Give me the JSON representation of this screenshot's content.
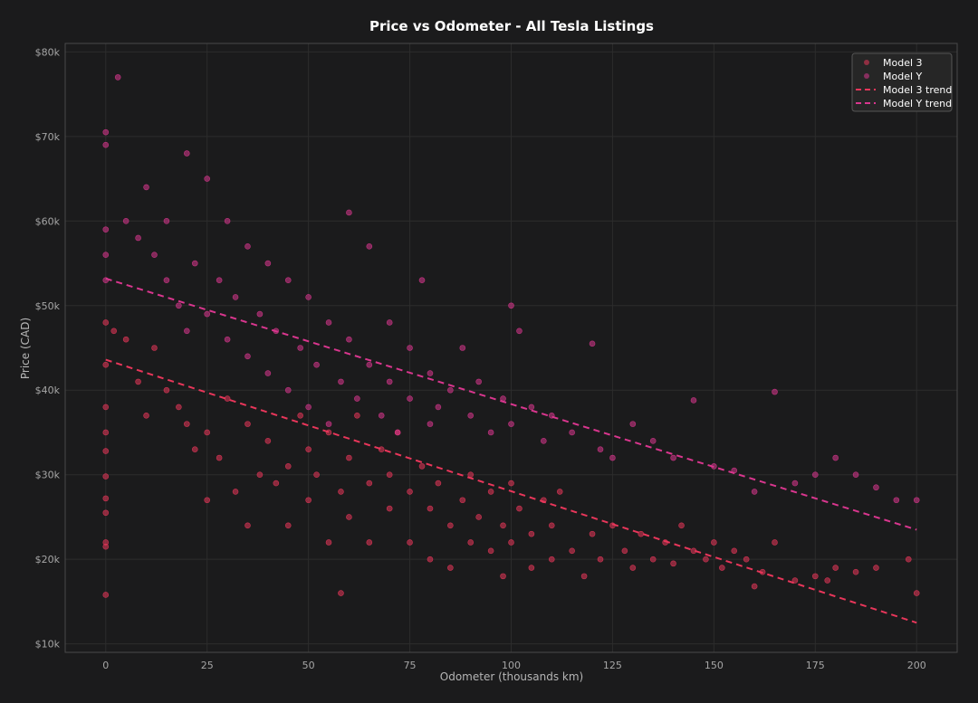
{
  "chart_data": {
    "type": "scatter",
    "title": "Price vs Odometer - All Tesla Listings",
    "xlabel": "Odometer (thousands km)",
    "ylabel": "Price (CAD)",
    "xlim": [
      -10,
      210
    ],
    "ylim": [
      9000,
      81000
    ],
    "x_ticks": [
      0,
      25,
      50,
      75,
      100,
      125,
      150,
      175,
      200
    ],
    "y_ticks": [
      10000,
      20000,
      30000,
      40000,
      50000,
      60000,
      70000,
      80000
    ],
    "y_tick_labels": [
      "$10k",
      "$20k",
      "$30k",
      "$40k",
      "$50k",
      "$60k",
      "$70k",
      "$80k"
    ],
    "grid": true,
    "legend_position": "top-right",
    "series": [
      {
        "name": "Model 3",
        "color": "#e8365a",
        "kind": "points",
        "points": [
          [
            0,
            15800
          ],
          [
            0,
            21500
          ],
          [
            0,
            22000
          ],
          [
            0,
            25500
          ],
          [
            0,
            27200
          ],
          [
            0,
            29800
          ],
          [
            0,
            32800
          ],
          [
            0,
            35000
          ],
          [
            0,
            38000
          ],
          [
            0,
            43000
          ],
          [
            0,
            48000
          ],
          [
            2,
            47000
          ],
          [
            5,
            46000
          ],
          [
            8,
            41000
          ],
          [
            10,
            37000
          ],
          [
            12,
            45000
          ],
          [
            15,
            40000
          ],
          [
            18,
            38000
          ],
          [
            20,
            36000
          ],
          [
            22,
            33000
          ],
          [
            25,
            27000
          ],
          [
            25,
            35000
          ],
          [
            28,
            32000
          ],
          [
            30,
            39000
          ],
          [
            32,
            28000
          ],
          [
            35,
            24000
          ],
          [
            35,
            36000
          ],
          [
            38,
            30000
          ],
          [
            40,
            34000
          ],
          [
            42,
            29000
          ],
          [
            45,
            24000
          ],
          [
            45,
            31000
          ],
          [
            48,
            37000
          ],
          [
            50,
            27000
          ],
          [
            50,
            33000
          ],
          [
            52,
            30000
          ],
          [
            55,
            22000
          ],
          [
            55,
            35000
          ],
          [
            58,
            16000
          ],
          [
            58,
            28000
          ],
          [
            60,
            25000
          ],
          [
            60,
            32000
          ],
          [
            62,
            37000
          ],
          [
            65,
            22000
          ],
          [
            65,
            29000
          ],
          [
            68,
            33000
          ],
          [
            70,
            26000
          ],
          [
            70,
            30000
          ],
          [
            72,
            35000
          ],
          [
            75,
            22000
          ],
          [
            75,
            28000
          ],
          [
            78,
            31000
          ],
          [
            80,
            20000
          ],
          [
            80,
            26000
          ],
          [
            82,
            29000
          ],
          [
            85,
            19000
          ],
          [
            85,
            24000
          ],
          [
            88,
            27000
          ],
          [
            90,
            22000
          ],
          [
            90,
            30000
          ],
          [
            92,
            25000
          ],
          [
            95,
            21000
          ],
          [
            95,
            28000
          ],
          [
            98,
            18000
          ],
          [
            98,
            24000
          ],
          [
            100,
            22000
          ],
          [
            100,
            29000
          ],
          [
            102,
            26000
          ],
          [
            105,
            19000
          ],
          [
            105,
            23000
          ],
          [
            108,
            27000
          ],
          [
            110,
            20000
          ],
          [
            110,
            24000
          ],
          [
            112,
            28000
          ],
          [
            115,
            21000
          ],
          [
            118,
            18000
          ],
          [
            120,
            23000
          ],
          [
            122,
            20000
          ],
          [
            125,
            24000
          ],
          [
            128,
            21000
          ],
          [
            130,
            19000
          ],
          [
            132,
            23000
          ],
          [
            135,
            20000
          ],
          [
            138,
            22000
          ],
          [
            140,
            19500
          ],
          [
            142,
            24000
          ],
          [
            145,
            21000
          ],
          [
            148,
            20000
          ],
          [
            150,
            22000
          ],
          [
            152,
            19000
          ],
          [
            155,
            21000
          ],
          [
            158,
            20000
          ],
          [
            160,
            16800
          ],
          [
            162,
            18500
          ],
          [
            165,
            22000
          ],
          [
            170,
            17500
          ],
          [
            175,
            18000
          ],
          [
            178,
            17500
          ],
          [
            180,
            19000
          ],
          [
            185,
            18500
          ],
          [
            190,
            19000
          ],
          [
            198,
            20000
          ],
          [
            200,
            16000
          ]
        ]
      },
      {
        "name": "Model Y",
        "color": "#d9368e",
        "kind": "points",
        "points": [
          [
            0,
            53000
          ],
          [
            0,
            56000
          ],
          [
            0,
            59000
          ],
          [
            0,
            69000
          ],
          [
            0,
            70500
          ],
          [
            3,
            77000
          ],
          [
            5,
            60000
          ],
          [
            8,
            58000
          ],
          [
            10,
            64000
          ],
          [
            12,
            56000
          ],
          [
            15,
            60000
          ],
          [
            15,
            53000
          ],
          [
            18,
            50000
          ],
          [
            20,
            68000
          ],
          [
            20,
            47000
          ],
          [
            22,
            55000
          ],
          [
            25,
            65000
          ],
          [
            25,
            49000
          ],
          [
            28,
            53000
          ],
          [
            30,
            60000
          ],
          [
            30,
            46000
          ],
          [
            32,
            51000
          ],
          [
            35,
            57000
          ],
          [
            35,
            44000
          ],
          [
            38,
            49000
          ],
          [
            40,
            55000
          ],
          [
            40,
            42000
          ],
          [
            42,
            47000
          ],
          [
            45,
            53000
          ],
          [
            45,
            40000
          ],
          [
            48,
            45000
          ],
          [
            50,
            51000
          ],
          [
            50,
            38000
          ],
          [
            52,
            43000
          ],
          [
            55,
            48000
          ],
          [
            55,
            36000
          ],
          [
            58,
            41000
          ],
          [
            60,
            61000
          ],
          [
            60,
            46000
          ],
          [
            62,
            39000
          ],
          [
            65,
            57000
          ],
          [
            65,
            43000
          ],
          [
            68,
            37000
          ],
          [
            70,
            48000
          ],
          [
            70,
            41000
          ],
          [
            72,
            35000
          ],
          [
            75,
            45000
          ],
          [
            75,
            39000
          ],
          [
            78,
            53000
          ],
          [
            80,
            42000
          ],
          [
            80,
            36000
          ],
          [
            82,
            38000
          ],
          [
            85,
            40000
          ],
          [
            88,
            45000
          ],
          [
            90,
            37000
          ],
          [
            92,
            41000
          ],
          [
            95,
            35000
          ],
          [
            98,
            39000
          ],
          [
            100,
            50000
          ],
          [
            100,
            36000
          ],
          [
            102,
            47000
          ],
          [
            105,
            38000
          ],
          [
            108,
            34000
          ],
          [
            110,
            37000
          ],
          [
            115,
            35000
          ],
          [
            120,
            45500
          ],
          [
            122,
            33000
          ],
          [
            125,
            32000
          ],
          [
            130,
            36000
          ],
          [
            135,
            34000
          ],
          [
            140,
            32000
          ],
          [
            145,
            38800
          ],
          [
            150,
            31000
          ],
          [
            155,
            30500
          ],
          [
            160,
            28000
          ],
          [
            165,
            39800
          ],
          [
            170,
            29000
          ],
          [
            175,
            30000
          ],
          [
            180,
            32000
          ],
          [
            185,
            30000
          ],
          [
            190,
            28500
          ],
          [
            195,
            27000
          ],
          [
            200,
            27000
          ]
        ]
      },
      {
        "name": "Model 3 trend",
        "color": "#e8365a",
        "kind": "trend",
        "points": [
          [
            0,
            43600
          ],
          [
            200,
            12500
          ]
        ]
      },
      {
        "name": "Model Y trend",
        "color": "#d9368e",
        "kind": "trend",
        "points": [
          [
            0,
            53200
          ],
          [
            200,
            23500
          ]
        ]
      }
    ]
  }
}
